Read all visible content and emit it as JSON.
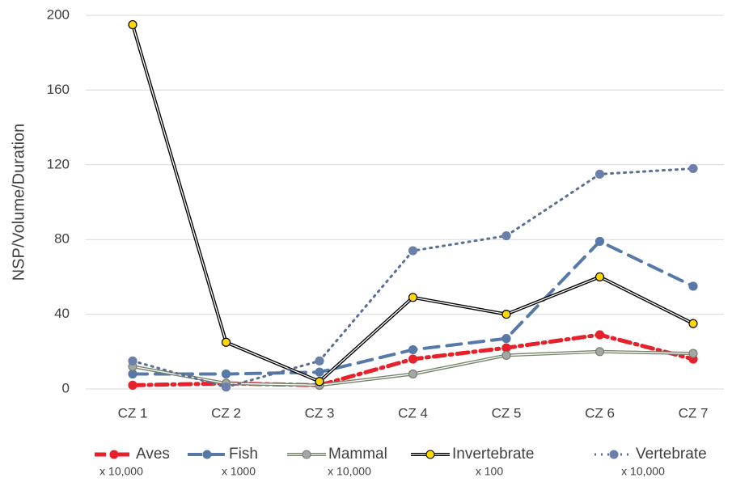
{
  "chart_data": {
    "type": "line",
    "y_label": "NSP/Volume/Duration",
    "categories": [
      "CZ 1",
      "CZ 2",
      "CZ 3",
      "CZ 4",
      "CZ 5",
      "CZ 6",
      "CZ 7"
    ],
    "ylim": [
      0,
      200
    ],
    "yticks": [
      0,
      40,
      80,
      120,
      160,
      200
    ],
    "grid": true,
    "series": [
      {
        "name": "Aves",
        "multiplier": "x 10,000",
        "color": "#e8202a",
        "dash": "14 6 3 6",
        "width": 5,
        "double": false,
        "marker_fill": "#e8202a",
        "values": [
          2,
          3,
          2,
          16,
          22,
          29,
          16
        ]
      },
      {
        "name": "Fish",
        "multiplier": "x 1000",
        "color": "#5679a8",
        "dash": "18 10",
        "width": 4,
        "double": false,
        "marker_fill": "#5679a8",
        "values": [
          8,
          8,
          9,
          21,
          27,
          79,
          55
        ]
      },
      {
        "name": "Mammal",
        "multiplier": "x 10,000",
        "color": "#74836a",
        "dash": "",
        "width": 4,
        "double": true,
        "marker_fill": "#a6a6a6",
        "values": [
          12,
          3,
          2,
          8,
          18,
          20,
          19
        ]
      },
      {
        "name": "Invertebrate",
        "multiplier": "x 100",
        "color": "#000000",
        "dash": "",
        "width": 4,
        "double": true,
        "marker_fill": "#ffd700",
        "values": [
          195,
          25,
          4,
          49,
          40,
          60,
          35
        ]
      },
      {
        "name": "Vertebrate",
        "multiplier": "x 10,000",
        "color": "#5b6e96",
        "dash": "2 6",
        "width": 3,
        "double": false,
        "marker_fill": "#6a80aa",
        "values": [
          15,
          1,
          15,
          74,
          82,
          115,
          118
        ]
      }
    ]
  }
}
